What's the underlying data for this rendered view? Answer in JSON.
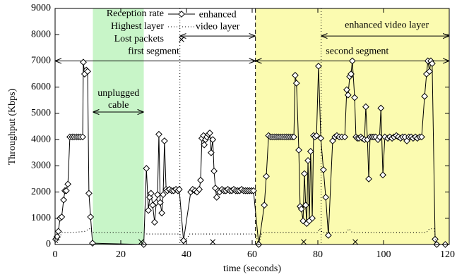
{
  "chart_data": {
    "type": "line",
    "x_label": "time (seconds)",
    "y_label": "Throughput (Kbps)",
    "xlim": [
      0,
      120
    ],
    "xticks": [
      0,
      20,
      40,
      60,
      80,
      100,
      120
    ],
    "ylim": [
      0,
      9000
    ],
    "yticks": [
      0,
      1000,
      2000,
      3000,
      4000,
      5000,
      6000,
      7000,
      8000,
      9000
    ],
    "legend": "upper left",
    "series": [
      {
        "name": "Reception rate",
        "color": "#000000",
        "style": "solid",
        "marker": "diamond",
        "x": [
          0.2,
          0.6,
          1,
          1.5,
          2,
          2.6,
          3,
          3.4,
          3.9,
          4.5,
          5.2,
          5.8,
          6.5,
          7.1,
          7.7,
          8.4,
          8.6,
          9,
          9.5,
          9.9,
          10.3,
          10.8,
          11.4,
          27,
          27.8,
          28.4,
          28.8,
          29.2,
          29.7,
          30.3,
          30.8,
          31.2,
          31.6,
          32,
          32.5,
          32.9,
          33.3,
          33.8,
          34.2,
          34.8,
          35.5,
          36.1,
          36.8,
          37.4,
          37.8,
          39.1,
          41.3,
          41.9,
          42.6,
          43.2,
          43.9,
          44.3,
          44.7,
          45.2,
          45.4,
          45.8,
          46.2,
          46.7,
          47.1,
          47.5,
          48,
          48.4,
          48.8,
          49.2,
          49.7,
          50.1,
          50.8,
          51.4,
          52,
          52.6,
          53.2,
          53.8,
          54.4,
          55,
          55.6,
          56.2,
          56.8,
          57.4,
          58,
          58.6,
          59.2,
          59.8,
          60.4,
          62,
          63.7,
          64.3,
          65,
          65.6,
          66.2,
          66.8,
          67.4,
          68,
          68.6,
          69.2,
          69.8,
          70.4,
          71,
          71.6,
          72.2,
          72.7,
          73.1,
          73.5,
          74.2,
          74.6,
          75,
          75.5,
          75.9,
          76.3,
          76.6,
          77,
          77.4,
          77.8,
          78.3,
          78.7,
          79.1,
          79.6,
          80.2,
          80.9,
          81.7,
          82.4,
          83.2,
          84.5,
          85.2,
          85.8,
          86.5,
          87.3,
          88.2,
          88.8,
          89.2,
          89.7,
          90.1,
          90.5,
          91.2,
          91.6,
          92,
          92.5,
          93.1,
          93.5,
          94.2,
          94.6,
          95.1,
          95.5,
          95.9,
          96.5,
          97,
          97.6,
          98.3,
          98.8,
          99.2,
          99.8,
          100.4,
          101.3,
          101.9,
          102.6,
          103.2,
          103.9,
          104.5,
          105.2,
          105.8,
          106.5,
          107.1,
          107.7,
          108.4,
          109,
          109.7,
          110.3,
          111,
          111.6,
          112.5,
          113.1,
          113.5,
          114,
          114.4,
          114.8,
          115.7,
          116.2,
          118.8
        ],
        "values": [
          200,
          300,
          500,
          1000,
          1050,
          1700,
          2050,
          2050,
          2300,
          4100,
          4100,
          4100,
          4100,
          4100,
          4100,
          4100,
          6950,
          6500,
          6650,
          6600,
          1950,
          1050,
          50,
          0,
          2900,
          1300,
          1800,
          1950,
          1500,
          850,
          1600,
          1900,
          4200,
          1600,
          1200,
          1900,
          3950,
          2100,
          2050,
          2100,
          2050,
          2050,
          2100,
          2050,
          2100,
          150,
          2000,
          2100,
          2050,
          2000,
          2100,
          2450,
          4050,
          4150,
          3800,
          4000,
          4100,
          4200,
          4250,
          3500,
          4000,
          2800,
          2150,
          1800,
          2050,
          2000,
          2100,
          2050,
          2050,
          2100,
          2050,
          2050,
          2100,
          2050,
          2050,
          2050,
          2100,
          2050,
          2050,
          2050,
          2050,
          2050,
          2050,
          0,
          1500,
          2600,
          4150,
          4100,
          4100,
          4100,
          4100,
          4100,
          4100,
          4100,
          4100,
          4100,
          4100,
          4100,
          4100,
          4100,
          6450,
          6150,
          3600,
          1450,
          1350,
          900,
          2700,
          1500,
          800,
          3200,
          900,
          3550,
          1000,
          4150,
          4100,
          4150,
          6800,
          4050,
          2850,
          1800,
          350,
          3950,
          4100,
          4150,
          4100,
          4100,
          4100,
          5900,
          5700,
          6400,
          6500,
          7000,
          5600,
          4100,
          4050,
          4050,
          4100,
          4050,
          4000,
          5250,
          4000,
          2500,
          4100,
          4100,
          4100,
          4100,
          4000,
          4100,
          5200,
          2650,
          4100,
          4050,
          4100,
          4050,
          4100,
          4150,
          4100,
          4050,
          4100,
          4100,
          3950,
          4100,
          4100,
          4050,
          4100,
          4050,
          4100,
          4100,
          5650,
          6500,
          7000,
          6600,
          7000,
          6900,
          200,
          0,
          0
        ]
      },
      {
        "name": "Highest layer",
        "color": "#000000",
        "style": "dotted",
        "marker": "none",
        "x": [
          0,
          1,
          2,
          5,
          9,
          10.5,
          11.4,
          27,
          28,
          38,
          39,
          41,
          61,
          62,
          63,
          80,
          80.5,
          81.5,
          88.5,
          89.5,
          90.5,
          113,
          114,
          115.5,
          116,
          120
        ],
        "values": [
          0,
          100,
          450,
          450,
          500,
          600,
          450,
          450,
          400,
          400,
          0,
          400,
          400,
          0,
          450,
          450,
          600,
          450,
          450,
          600,
          450,
          450,
          600,
          600,
          0,
          0
        ]
      },
      {
        "name": "Lost packets",
        "color": "#000000",
        "style": "none",
        "marker": "x",
        "x": [
          26.2,
          48,
          75.7,
          91.4
        ],
        "values": [
          100,
          100,
          100,
          100
        ]
      }
    ],
    "regions": [
      {
        "xlim": [
          11.5,
          27
        ],
        "color": "#c8f5c8"
      },
      {
        "xlim": [
          61,
          120
        ],
        "color": "#fbfbb0"
      }
    ],
    "vlines": [
      {
        "x": 38,
        "style": "dotted"
      },
      {
        "x": 61,
        "style": "dashed"
      },
      {
        "x": 81,
        "style": "dotted"
      }
    ],
    "annotations": [
      {
        "text": [
          "first segment"
        ],
        "x": 30,
        "y": 7350,
        "arrow": [
          0,
          61
        ],
        "arrow_y": 7000
      },
      {
        "text": [
          "second segment"
        ],
        "x": 92,
        "y": 7350,
        "arrow": [
          61,
          120
        ],
        "arrow_y": 7000
      },
      {
        "text": [
          "enhanced video layer"
        ],
        "x": 101,
        "y": 8350,
        "arrow": [
          81,
          120
        ],
        "arrow_y": 7950
      },
      {
        "text": [
          "enhanced",
          "video layer"
        ],
        "x": 49.5,
        "y": 8750,
        "arrow": [
          38,
          61
        ],
        "arrow_y": 7950
      },
      {
        "text": [
          "unplugged",
          "cable"
        ],
        "x": 19.3,
        "y": 5750,
        "arrow": [
          11.5,
          27
        ],
        "arrow_y": 5050
      }
    ]
  }
}
